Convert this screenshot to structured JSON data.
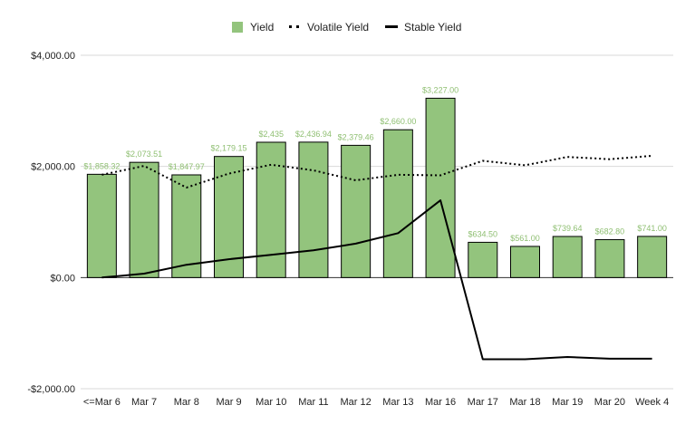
{
  "chart_data": {
    "type": "bar",
    "categories": [
      "<=Mar 6",
      "Mar 7",
      "Mar 8",
      "Mar 9",
      "Mar 10",
      "Mar 11",
      "Mar 12",
      "Mar 13",
      "Mar 16",
      "Mar 17",
      "Mar 18",
      "Mar 19",
      "Mar 20",
      "Week 4"
    ],
    "ylim": [
      -2000,
      4000
    ],
    "yticks": [
      {
        "value": 4000,
        "label": "$4,000.00"
      },
      {
        "value": 2000,
        "label": "$2,000.00"
      },
      {
        "value": 0,
        "label": "$0.00"
      },
      {
        "value": -2000,
        "label": "-$2,000.00"
      }
    ],
    "grid": true,
    "legend_position": "top",
    "series": [
      {
        "name": "Yield",
        "type": "bar",
        "color": "#93c47d",
        "values": [
          1858.32,
          2073.51,
          1847.97,
          2179.15,
          2435,
          2436.94,
          2379.46,
          2660.0,
          3227.0,
          634.5,
          561.0,
          739.64,
          682.8,
          741.0
        ],
        "labels": [
          "$1,858.32",
          "$2,073.51",
          "$1,847.97",
          "$2,179.15",
          "$2,435",
          "$2,436.94",
          "$2,379.46",
          "$2,660.00",
          "$3,227.00",
          "$634.50",
          "$561.00",
          "$739.64",
          "$682.80",
          "$741.00"
        ]
      },
      {
        "name": "Volatile Yield",
        "type": "line",
        "style": "dotted",
        "color": "#000000",
        "values": [
          1850,
          2010,
          1620,
          1870,
          2030,
          1930,
          1750,
          1850,
          1840,
          2100,
          2020,
          2170,
          2130,
          2190
        ]
      },
      {
        "name": "Stable Yield",
        "type": "line",
        "style": "solid",
        "color": "#000000",
        "values": [
          0,
          70,
          230,
          330,
          410,
          490,
          610,
          800,
          1390,
          -1470,
          -1470,
          -1430,
          -1460,
          -1460
        ]
      }
    ]
  }
}
